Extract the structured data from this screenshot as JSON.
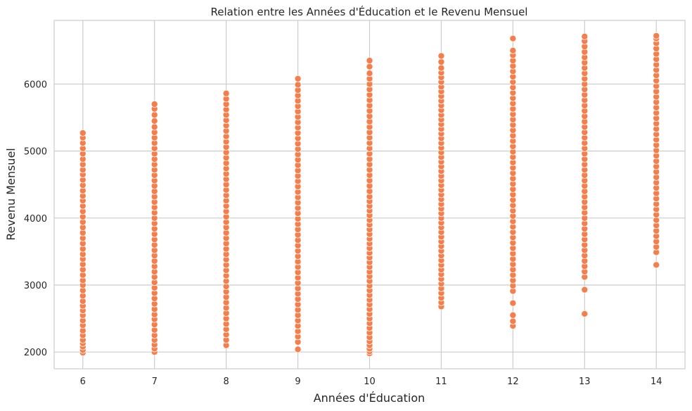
{
  "chart_data": {
    "type": "scatter",
    "title": "Relation entre les Années d'Éducation et le Revenu Mensuel",
    "xlabel": "Années d'Éducation",
    "ylabel": "Revenu Mensuel",
    "xlim": [
      5.6,
      14.4
    ],
    "ylim": [
      1750,
      6950
    ],
    "xticks": [
      6,
      7,
      8,
      9,
      10,
      11,
      12,
      13,
      14
    ],
    "yticks": [
      2000,
      3000,
      4000,
      5000,
      6000
    ],
    "grid": true,
    "point_color": "#f47f4c",
    "point_edge_color": "#ffffff",
    "grid_color": "#cccccc",
    "frame_color": "#cccccc",
    "series": [
      {
        "x": 6,
        "values": [
          1990,
          2030,
          2080,
          2130,
          2180,
          2250,
          2320,
          2400,
          2470,
          2550,
          2620,
          2690,
          2760,
          2840,
          2920,
          3000,
          3070,
          3150,
          3230,
          3310,
          3390,
          3460,
          3540,
          3620,
          3700,
          3780,
          3860,
          3940,
          4020,
          4100,
          4180,
          4260,
          4330,
          4410,
          4490,
          4570,
          4650,
          4720,
          4800,
          4880,
          4960,
          5040,
          5120,
          5200,
          5270
        ]
      },
      {
        "x": 7,
        "values": [
          2000,
          2050,
          2110,
          2180,
          2250,
          2330,
          2410,
          2490,
          2560,
          2640,
          2720,
          2800,
          2880,
          2960,
          3040,
          3120,
          3200,
          3280,
          3360,
          3440,
          3520,
          3600,
          3680,
          3760,
          3840,
          3920,
          4000,
          4080,
          4160,
          4240,
          4320,
          4400,
          4480,
          4560,
          4640,
          4720,
          4800,
          4880,
          4960,
          5040,
          5120,
          5200,
          5280,
          5360,
          5450,
          5540,
          5630,
          5700
        ]
      },
      {
        "x": 8,
        "values": [
          2100,
          2180,
          2260,
          2340,
          2420,
          2500,
          2580,
          2660,
          2740,
          2820,
          2900,
          2980,
          3060,
          3140,
          3220,
          3300,
          3380,
          3460,
          3540,
          3620,
          3700,
          3780,
          3860,
          3940,
          4020,
          4100,
          4180,
          4260,
          4340,
          4420,
          4500,
          4580,
          4660,
          4740,
          4820,
          4900,
          4980,
          5060,
          5140,
          5220,
          5300,
          5380,
          5460,
          5540,
          5620,
          5700,
          5780,
          5860
        ]
      },
      {
        "x": 9,
        "values": [
          2040,
          2150,
          2230,
          2310,
          2390,
          2470,
          2550,
          2630,
          2710,
          2790,
          2870,
          2950,
          3030,
          3110,
          3190,
          3270,
          3350,
          3430,
          3510,
          3590,
          3670,
          3750,
          3830,
          3910,
          3990,
          4070,
          4150,
          4230,
          4310,
          4390,
          4470,
          4550,
          4630,
          4710,
          4790,
          4870,
          4950,
          5030,
          5110,
          5190,
          5270,
          5350,
          5430,
          5510,
          5590,
          5670,
          5750,
          5830,
          5910,
          5990,
          6080
        ]
      },
      {
        "x": 10,
        "values": [
          1980,
          2010,
          2050,
          2100,
          2160,
          2220,
          2290,
          2360,
          2430,
          2500,
          2570,
          2640,
          2710,
          2780,
          2850,
          2920,
          2990,
          3060,
          3130,
          3200,
          3270,
          3340,
          3410,
          3480,
          3550,
          3620,
          3690,
          3760,
          3830,
          3900,
          3970,
          4040,
          4110,
          4180,
          4250,
          4320,
          4400,
          4480,
          4560,
          4640,
          4720,
          4800,
          4880,
          4960,
          5040,
          5120,
          5200,
          5280,
          5360,
          5440,
          5520,
          5600,
          5680,
          5760,
          5840,
          5920,
          6000,
          6080,
          6160,
          6260,
          6350
        ]
      },
      {
        "x": 11,
        "values": [
          2680,
          2740,
          2810,
          2880,
          2950,
          3020,
          3090,
          3160,
          3230,
          3300,
          3370,
          3440,
          3510,
          3580,
          3650,
          3720,
          3790,
          3860,
          3930,
          4000,
          4070,
          4140,
          4210,
          4280,
          4350,
          4420,
          4490,
          4560,
          4630,
          4700,
          4770,
          4840,
          4910,
          4980,
          5050,
          5120,
          5190,
          5260,
          5330,
          5400,
          5470,
          5540,
          5610,
          5680,
          5750,
          5820,
          5890,
          5960,
          6030,
          6100,
          6170,
          6240,
          6330,
          6420
        ]
      },
      {
        "x": 12,
        "values": [
          2390,
          2460,
          2550,
          2730,
          2910,
          2990,
          3070,
          3150,
          3230,
          3310,
          3390,
          3470,
          3550,
          3630,
          3710,
          3790,
          3870,
          3950,
          4030,
          4110,
          4190,
          4270,
          4350,
          4430,
          4510,
          4590,
          4670,
          4750,
          4830,
          4910,
          4990,
          5070,
          5150,
          5230,
          5310,
          5390,
          5470,
          5550,
          5630,
          5710,
          5790,
          5870,
          5950,
          6030,
          6110,
          6190,
          6270,
          6350,
          6430,
          6500,
          6680
        ]
      },
      {
        "x": 13,
        "values": [
          2570,
          2930,
          3120,
          3200,
          3280,
          3360,
          3440,
          3520,
          3600,
          3680,
          3760,
          3840,
          3920,
          4000,
          4080,
          4160,
          4240,
          4320,
          4400,
          4480,
          4560,
          4640,
          4720,
          4800,
          4880,
          4960,
          5040,
          5120,
          5200,
          5280,
          5360,
          5440,
          5520,
          5600,
          5680,
          5760,
          5840,
          5920,
          6000,
          6080,
          6160,
          6240,
          6320,
          6400,
          6480,
          6560,
          6640,
          6710
        ]
      },
      {
        "x": 14,
        "values": [
          3300,
          3490,
          3570,
          3650,
          3730,
          3810,
          3890,
          3970,
          4050,
          4130,
          4210,
          4290,
          4370,
          4450,
          4530,
          4610,
          4690,
          4770,
          4850,
          4930,
          5010,
          5090,
          5170,
          5250,
          5330,
          5410,
          5490,
          5570,
          5650,
          5730,
          5810,
          5890,
          5970,
          6050,
          6130,
          6210,
          6290,
          6370,
          6450,
          6530,
          6610,
          6680,
          6720
        ]
      }
    ]
  }
}
